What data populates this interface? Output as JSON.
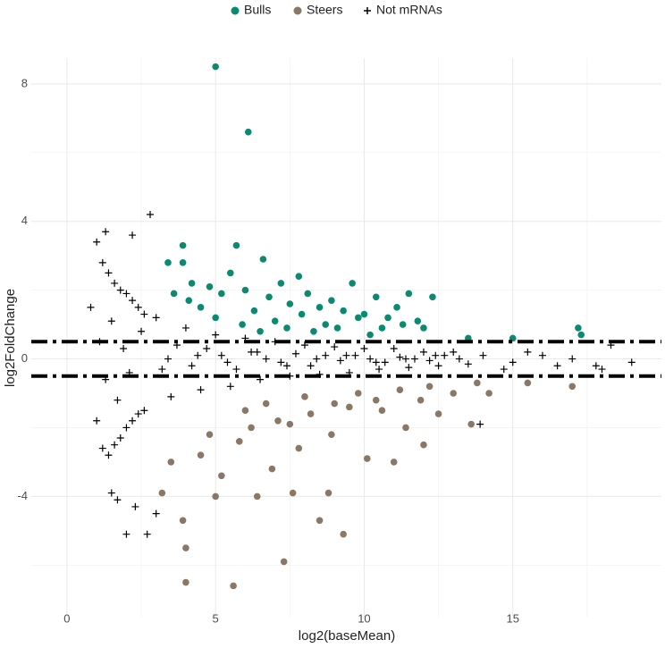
{
  "chart_data": {
    "type": "scatter",
    "x_label": "log2(baseMean)",
    "y_label": "log2FoldChange",
    "xlim": [
      -1.2,
      20
    ],
    "ylim": [
      -7.5,
      8.75
    ],
    "xticks": [
      0,
      5,
      10,
      15
    ],
    "yticks": [
      -4,
      0,
      4,
      8
    ],
    "minor_xticks": [
      2.5,
      7.5,
      12.5,
      17.5
    ],
    "minor_yticks": [
      -6,
      -2,
      2,
      6
    ],
    "grid": true,
    "legend": "top",
    "hlines": [
      0.5,
      -0.5
    ],
    "series": [
      {
        "name": "Bulls",
        "color": "#0b8a72",
        "marker": "circle",
        "x": [
          5.0,
          6.1,
          3.9,
          5.7,
          3.4,
          3.9,
          6.6,
          7.8,
          5.5,
          4.2,
          4.8,
          5.2,
          6.0,
          6.8,
          7.2,
          7.5,
          8.1,
          8.5,
          8.9,
          9.3,
          9.6,
          10.0,
          10.4,
          10.8,
          11.1,
          11.5,
          11.8,
          12.3,
          12.0,
          17.2,
          17.3,
          15.0,
          13.5,
          4.5,
          5.0,
          6.3,
          7.0,
          7.9,
          8.7,
          9.8,
          10.6,
          11.3,
          3.6,
          4.1,
          5.9,
          6.5,
          7.4,
          8.3,
          9.1,
          10.2
        ],
        "values": [
          8.5,
          6.6,
          3.3,
          3.3,
          2.8,
          2.8,
          2.9,
          2.4,
          2.5,
          2.2,
          2.1,
          1.9,
          2.0,
          1.8,
          2.2,
          1.6,
          1.9,
          1.5,
          1.7,
          1.4,
          2.2,
          1.3,
          1.8,
          1.2,
          1.5,
          1.9,
          1.1,
          1.8,
          0.9,
          0.9,
          0.7,
          0.6,
          0.6,
          1.5,
          1.2,
          1.4,
          1.1,
          1.3,
          1.0,
          1.2,
          0.9,
          1.0,
          1.9,
          1.7,
          1.0,
          0.8,
          0.9,
          0.8,
          0.9,
          0.7
        ]
      },
      {
        "name": "Steers",
        "color": "#8b7765",
        "marker": "circle",
        "x": [
          5.6,
          4.0,
          4.0,
          7.3,
          9.3,
          8.5,
          3.9,
          5.0,
          6.4,
          7.6,
          8.8,
          13.6,
          17.0,
          14.2,
          12.0,
          11.0,
          3.5,
          4.5,
          5.2,
          5.8,
          6.2,
          6.9,
          7.1,
          7.8,
          8.2,
          8.9,
          9.5,
          10.1,
          10.6,
          11.4,
          11.9,
          12.5,
          13.0,
          3.2,
          4.8,
          6.0,
          6.7,
          7.5,
          8.0,
          9.0,
          9.8,
          10.4,
          11.2,
          12.2,
          13.8,
          15.5
        ],
        "values": [
          -6.6,
          -6.5,
          -5.5,
          -5.9,
          -5.1,
          -4.7,
          -4.7,
          -4.0,
          -4.0,
          -3.9,
          -3.9,
          -1.9,
          -0.8,
          -1.0,
          -2.5,
          -3.0,
          -3.0,
          -2.8,
          -3.4,
          -2.4,
          -2.0,
          -3.2,
          -1.8,
          -2.6,
          -1.6,
          -2.2,
          -1.4,
          -2.9,
          -1.5,
          -2.0,
          -1.2,
          -1.6,
          -1.0,
          -3.9,
          -2.2,
          -1.5,
          -1.3,
          -1.9,
          -1.1,
          -1.3,
          -1.0,
          -1.2,
          -0.9,
          -0.8,
          -0.7,
          -0.7
        ]
      },
      {
        "name": "Not mRNAs",
        "color": "#000000",
        "marker": "plus",
        "x": [
          2.8,
          1.3,
          1.0,
          2.2,
          2.0,
          2.7,
          3.0,
          1.5,
          1.7,
          2.3,
          1.0,
          0.8,
          19.0,
          18.3,
          17.8,
          16.5,
          15.5,
          14.7,
          13.9,
          1.2,
          1.4,
          1.6,
          1.8,
          2.0,
          2.2,
          2.4,
          2.6,
          1.2,
          1.4,
          1.6,
          1.8,
          2.0,
          2.2,
          2.4,
          2.6,
          1.1,
          1.3,
          1.5,
          1.7,
          1.9,
          2.1,
          2.5,
          3.0,
          3.5,
          4.0,
          4.5,
          5.0,
          5.5,
          6.0,
          6.5,
          7.0,
          7.5,
          8.0,
          8.5,
          9.0,
          9.5,
          10.0,
          10.5,
          11.0,
          11.5,
          12.0,
          12.5,
          13.0,
          13.5,
          14.0,
          3.2,
          3.7,
          4.2,
          4.7,
          5.2,
          5.7,
          6.2,
          6.7,
          7.2,
          7.7,
          8.2,
          8.7,
          9.2,
          9.7,
          10.2,
          10.7,
          11.2,
          11.7,
          12.2,
          12.7,
          13.2,
          3.4,
          4.4,
          5.4,
          6.4,
          7.4,
          8.4,
          9.4,
          10.4,
          11.4,
          12.4,
          15.0,
          16.0,
          17.0,
          18.0
        ],
        "values": [
          4.2,
          3.7,
          3.4,
          3.6,
          -5.1,
          -5.1,
          -4.5,
          -3.9,
          -4.1,
          -4.3,
          -1.8,
          1.5,
          -0.1,
          0.4,
          -0.2,
          -0.2,
          0.2,
          -0.3,
          -1.9,
          2.8,
          2.5,
          2.2,
          2.0,
          1.9,
          1.7,
          1.5,
          1.3,
          -2.6,
          -2.8,
          -2.5,
          -2.3,
          -2.0,
          -1.8,
          -1.6,
          -1.5,
          0.5,
          -0.6,
          1.1,
          -1.2,
          0.3,
          -0.4,
          0.8,
          1.2,
          -1.1,
          0.9,
          -0.9,
          0.7,
          -0.8,
          0.6,
          -0.6,
          0.5,
          -0.5,
          0.4,
          -0.45,
          0.35,
          -0.4,
          0.3,
          -0.3,
          0.3,
          -0.25,
          0.2,
          -0.2,
          0.2,
          -0.15,
          0.1,
          -0.3,
          0.4,
          -0.2,
          0.3,
          0.1,
          -0.3,
          0.2,
          0.0,
          -0.1,
          0.15,
          -0.2,
          0.1,
          -0.05,
          0.1,
          0.0,
          -0.1,
          0.05,
          0.0,
          -0.05,
          0.1,
          0.0,
          0.0,
          0.1,
          -0.1,
          0.2,
          -0.2,
          0.0,
          0.1,
          -0.1,
          0.0,
          0.1,
          -0.1,
          0.1,
          0.0,
          -0.3
        ]
      }
    ]
  }
}
